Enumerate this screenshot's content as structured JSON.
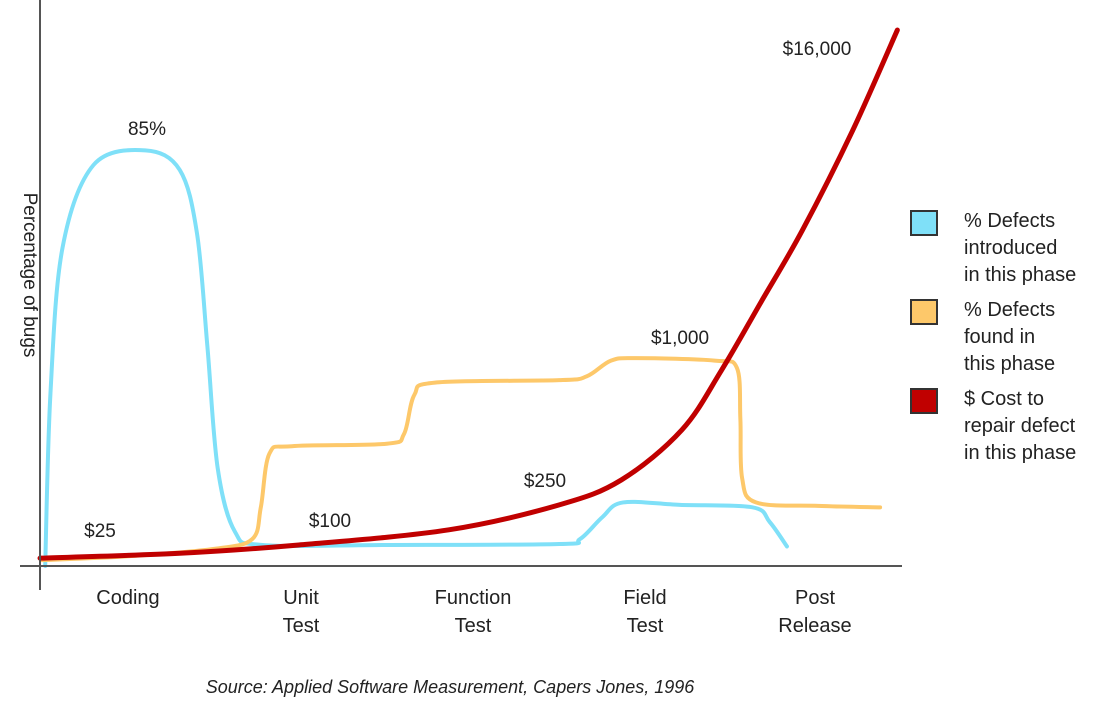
{
  "chart_data": {
    "type": "line",
    "title": "",
    "ylabel": "Percentage of bugs",
    "xlabel": "",
    "categories": [
      "Coding",
      "Unit\nTest",
      "Function\nTest",
      "Field\nTest",
      "Post\nRelease"
    ],
    "grid": false,
    "legend_position": "right",
    "source": "Source: Applied Software Measurement, Capers Jones, 1996",
    "series": [
      {
        "name": "% Defects\nintroduced\nin this phase",
        "color": "#7fe0f8",
        "points": [
          [
            -0.48,
            0
          ],
          [
            -0.45,
            35
          ],
          [
            -0.38,
            65
          ],
          [
            -0.2,
            82
          ],
          [
            0.1,
            85
          ],
          [
            0.3,
            81
          ],
          [
            0.4,
            68
          ],
          [
            0.46,
            45
          ],
          [
            0.52,
            20
          ],
          [
            0.62,
            7
          ],
          [
            0.78,
            4.3
          ],
          [
            1.5,
            4.3
          ],
          [
            2.5,
            4.5
          ],
          [
            2.62,
            5.5
          ],
          [
            2.75,
            10
          ],
          [
            2.87,
            13
          ],
          [
            3.2,
            12.5
          ],
          [
            3.62,
            12
          ],
          [
            3.72,
            9
          ],
          [
            3.82,
            4
          ]
        ]
      },
      {
        "name": "% Defects\nfound in\nthis phase",
        "color": "#fdc86a",
        "points": [
          [
            -0.5,
            1.2
          ],
          [
            0,
            2
          ],
          [
            0.5,
            3.5
          ],
          [
            0.72,
            5.5
          ],
          [
            0.77,
            12
          ],
          [
            0.82,
            23
          ],
          [
            0.95,
            24.5
          ],
          [
            1.5,
            25
          ],
          [
            1.6,
            27
          ],
          [
            1.66,
            35
          ],
          [
            1.78,
            37.5
          ],
          [
            2.5,
            38
          ],
          [
            2.66,
            38.8
          ],
          [
            2.8,
            42
          ],
          [
            2.95,
            42.5
          ],
          [
            3.4,
            42
          ],
          [
            3.53,
            40.5
          ],
          [
            3.55,
            30
          ],
          [
            3.56,
            18
          ],
          [
            3.64,
            13
          ],
          [
            4.0,
            12.3
          ],
          [
            4.36,
            12
          ]
        ]
      },
      {
        "name": "$ Cost to\nrepair defect\nin this phase",
        "color": "#c00000",
        "points": [
          [
            -0.51,
            1.6
          ],
          [
            0.3,
            2.6
          ],
          [
            0.99,
            4.3
          ],
          [
            1.86,
            7.4
          ],
          [
            2.5,
            12.5
          ],
          [
            2.86,
            17.6
          ],
          [
            3.21,
            27.8
          ],
          [
            3.44,
            40
          ],
          [
            3.67,
            54
          ],
          [
            3.91,
            68.7
          ],
          [
            4.2,
            89
          ],
          [
            4.46,
            109.6
          ]
        ]
      }
    ],
    "data_labels": [
      {
        "text": "85%",
        "series": 0
      },
      {
        "text": "$25",
        "series": 2
      },
      {
        "text": "$100",
        "series": 2
      },
      {
        "text": "$250",
        "series": 2
      },
      {
        "text": "$1,000",
        "series": 2
      },
      {
        "text": "$16,000",
        "series": 2
      }
    ]
  }
}
